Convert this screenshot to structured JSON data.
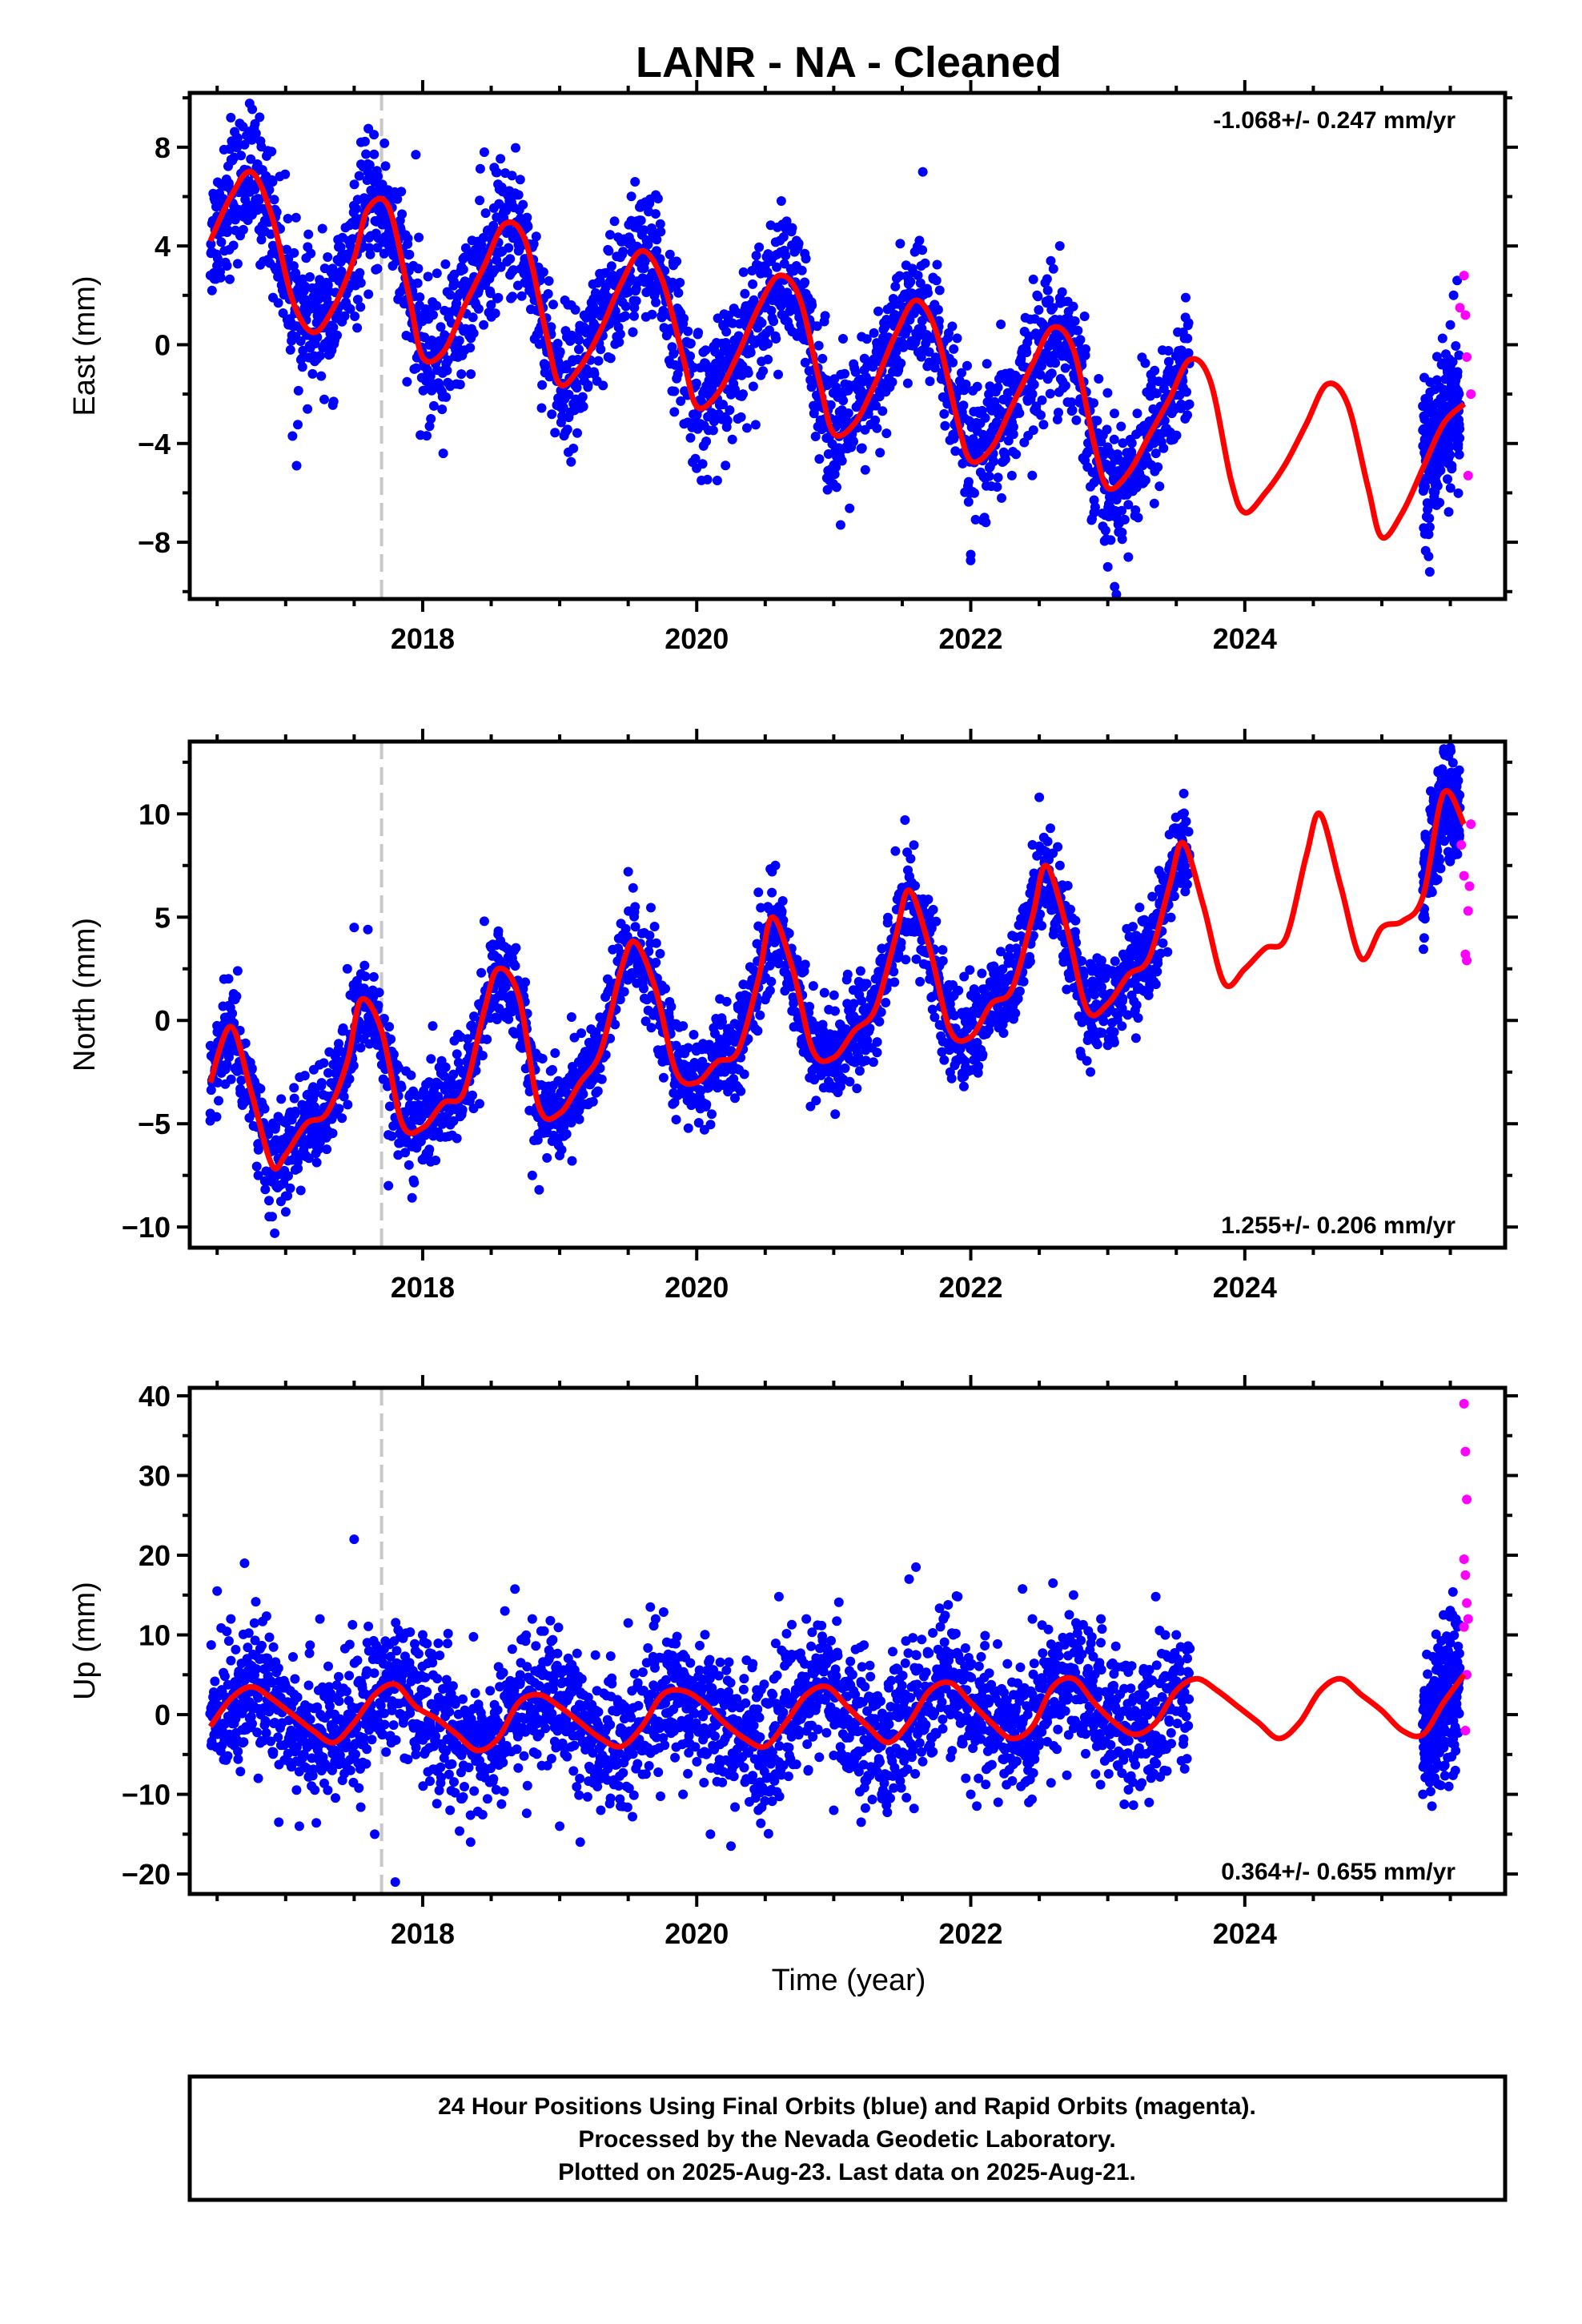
{
  "title": "LANR  - NA - Cleaned",
  "xlabel": "Time (year)",
  "footer": {
    "line1": "24 Hour Positions Using Final Orbits (blue) and Rapid Orbits (magenta).",
    "line2": "Processed by the Nevada Geodetic Laboratory.",
    "line3": "Plotted on 2025-Aug-23. Last data on 2025-Aug-21."
  },
  "colors": {
    "final": "#0000ff",
    "rapid": "#ff00ff",
    "model": "#ff0000",
    "event_line": "#c8c8c8"
  },
  "chart_data": [
    {
      "type": "scatter",
      "component": "east",
      "ylabel": "East (mm)",
      "rate": "-1.068+/- 0.247 mm/yr",
      "rate_position": "top-right",
      "xlim": [
        2016.3,
        2025.9
      ],
      "ylim": [
        -10.3,
        10.2
      ],
      "xticks": [
        2018,
        2020,
        2022,
        2024
      ],
      "xtick_labels": [
        "2018",
        "2020",
        "2022",
        "2024"
      ],
      "yticks": [
        8,
        4,
        0,
        -4,
        -8
      ],
      "ytick_labels": [
        "8",
        "4",
        "0",
        "−4",
        "−8"
      ],
      "event_line_x": 2017.7,
      "final_data_end": 2023.6,
      "rapid_data_start": 2025.3,
      "model": {
        "x": [
          2016.45,
          2016.6,
          2016.75,
          2016.9,
          2017.05,
          2017.2,
          2017.35,
          2017.5,
          2017.6,
          2017.75,
          2017.9,
          2018.0,
          2018.15,
          2018.3,
          2018.45,
          2018.6,
          2018.75,
          2018.9,
          2019.0,
          2019.15,
          2019.3,
          2019.45,
          2019.6,
          2019.75,
          2019.9,
          2020.0,
          2020.15,
          2020.3,
          2020.45,
          2020.6,
          2020.75,
          2020.9,
          2021.0,
          2021.15,
          2021.3,
          2021.45,
          2021.6,
          2021.75,
          2021.9,
          2022.0,
          2022.15,
          2022.3,
          2022.45,
          2022.6,
          2022.75,
          2022.9,
          2023.0,
          2023.15,
          2023.3,
          2023.45,
          2023.6,
          2023.75,
          2023.9,
          2024.0,
          2024.15,
          2024.3,
          2024.45,
          2024.6,
          2024.75,
          2024.9,
          2025.0,
          2025.15,
          2025.3,
          2025.45,
          2025.6
        ],
        "y": [
          4.2,
          6.0,
          7.0,
          5.2,
          1.8,
          0.5,
          1.5,
          3.5,
          5.5,
          5.6,
          2.0,
          -0.5,
          -0.3,
          1.5,
          3.2,
          4.9,
          4.2,
          0.5,
          -1.6,
          -0.9,
          0.6,
          2.5,
          3.8,
          2.6,
          -0.5,
          -2.5,
          -2.0,
          -0.4,
          1.5,
          2.8,
          1.9,
          -1.6,
          -3.6,
          -3.2,
          -1.6,
          0.4,
          1.8,
          0.5,
          -3.0,
          -4.7,
          -4.2,
          -2.5,
          -0.8,
          0.7,
          -0.2,
          -4.0,
          -5.8,
          -5.2,
          -3.7,
          -2.2,
          -0.6,
          -1.5,
          -5.5,
          -6.8,
          -6.0,
          -4.8,
          -3.2,
          -1.6,
          -2.4,
          -5.8,
          -7.8,
          -6.8,
          -5.0,
          -3.2,
          -2.4
        ]
      },
      "final_points": [
        [
          2016.5,
          5.2
        ],
        [
          2016.55,
          7.9
        ],
        [
          2016.6,
          9.2
        ],
        [
          2016.65,
          6.3
        ],
        [
          2016.7,
          8.1
        ],
        [
          2016.8,
          5.5
        ],
        [
          2016.95,
          3.1
        ],
        [
          2017.05,
          -3.7
        ],
        [
          2017.08,
          -4.9
        ],
        [
          2017.15,
          1.0
        ],
        [
          2017.35,
          -2.3
        ],
        [
          2017.5,
          5.6
        ],
        [
          2017.55,
          8.2
        ],
        [
          2017.6,
          7.0
        ],
        [
          2017.75,
          5.0
        ],
        [
          2017.95,
          7.7
        ],
        [
          2018.0,
          1.2
        ],
        [
          2018.05,
          -3.3
        ],
        [
          2018.15,
          -4.4
        ],
        [
          2018.3,
          2.2
        ],
        [
          2018.45,
          7.8
        ],
        [
          2018.55,
          6.5
        ],
        [
          2018.7,
          3.8
        ],
        [
          2018.85,
          0.6
        ],
        [
          2019.0,
          -2.5
        ],
        [
          2019.1,
          -4.2
        ],
        [
          2019.25,
          -1.1
        ],
        [
          2019.4,
          5.0
        ],
        [
          2019.55,
          6.6
        ],
        [
          2019.7,
          5.3
        ],
        [
          2019.85,
          1.3
        ],
        [
          2020.05,
          -4.1
        ],
        [
          2020.15,
          -5.5
        ],
        [
          2020.3,
          -3.0
        ],
        [
          2020.5,
          1.5
        ],
        [
          2020.65,
          4.7
        ],
        [
          2020.8,
          0.5
        ],
        [
          2020.95,
          -5.4
        ],
        [
          2021.05,
          -7.3
        ],
        [
          2021.2,
          -4.2
        ],
        [
          2021.4,
          0.3
        ],
        [
          2021.55,
          2.1
        ],
        [
          2021.65,
          7.0
        ],
        [
          2021.75,
          2.6
        ],
        [
          2021.9,
          -3.4
        ],
        [
          2022.0,
          -8.5
        ],
        [
          2022.1,
          -7.0
        ],
        [
          2022.3,
          -5.3
        ],
        [
          2022.45,
          -2.0
        ],
        [
          2022.6,
          1.5
        ],
        [
          2022.65,
          4.0
        ],
        [
          2022.8,
          0.2
        ],
        [
          2022.9,
          -6.8
        ],
        [
          2023.0,
          -9.0
        ],
        [
          2023.05,
          -9.8
        ],
        [
          2023.15,
          -8.6
        ],
        [
          2023.3,
          -3.5
        ],
        [
          2023.45,
          -1.0
        ],
        [
          2023.55,
          0.5
        ],
        [
          2025.3,
          -4.1
        ],
        [
          2025.35,
          -9.2
        ],
        [
          2025.4,
          -6.5
        ],
        [
          2025.45,
          -3.0
        ],
        [
          2025.5,
          0.8
        ],
        [
          2025.55,
          2.6
        ]
      ],
      "rapid_points": [
        [
          2025.57,
          1.5
        ],
        [
          2025.6,
          2.8
        ],
        [
          2025.61,
          1.2
        ],
        [
          2025.62,
          -0.5
        ],
        [
          2025.63,
          -5.3
        ],
        [
          2025.65,
          -2.0
        ]
      ]
    },
    {
      "type": "scatter",
      "component": "north",
      "ylabel": "North (mm)",
      "rate": "1.255+/- 0.206 mm/yr",
      "rate_position": "bottom-right",
      "xlim": [
        2016.3,
        2025.9
      ],
      "ylim": [
        -11.0,
        13.5
      ],
      "xticks": [
        2018,
        2020,
        2022,
        2024
      ],
      "xtick_labels": [
        "2018",
        "2020",
        "2022",
        "2024"
      ],
      "yticks": [
        10,
        5,
        0,
        -5,
        -10
      ],
      "ytick_labels": [
        "10",
        "5",
        "0",
        "−5",
        "−10"
      ],
      "event_line_x": 2017.7,
      "final_data_end": 2023.6,
      "rapid_data_start": 2025.3,
      "model": {
        "x": [
          2016.45,
          2016.6,
          2016.75,
          2016.9,
          2017.0,
          2017.15,
          2017.3,
          2017.45,
          2017.55,
          2017.7,
          2017.85,
          2018.0,
          2018.15,
          2018.3,
          2018.45,
          2018.55,
          2018.7,
          2018.85,
          2019.0,
          2019.15,
          2019.3,
          2019.45,
          2019.55,
          2019.7,
          2019.85,
          2020.0,
          2020.15,
          2020.3,
          2020.45,
          2020.55,
          2020.7,
          2020.85,
          2021.0,
          2021.15,
          2021.3,
          2021.45,
          2021.55,
          2021.7,
          2021.85,
          2022.0,
          2022.15,
          2022.3,
          2022.45,
          2022.55,
          2022.7,
          2022.85,
          2023.0,
          2023.15,
          2023.3,
          2023.45,
          2023.55,
          2023.7,
          2023.85,
          2024.0,
          2024.15,
          2024.3,
          2024.45,
          2024.55,
          2024.7,
          2024.85,
          2025.0,
          2025.15,
          2025.3,
          2025.45,
          2025.6
        ],
        "y": [
          -3.0,
          -0.3,
          -3.5,
          -7.0,
          -6.5,
          -5.0,
          -4.5,
          -2.0,
          1.0,
          -0.5,
          -5.0,
          -5.2,
          -4.0,
          -3.5,
          0.5,
          2.5,
          1.2,
          -4.2,
          -4.5,
          -3.0,
          -1.5,
          2.5,
          3.8,
          1.5,
          -2.5,
          -3.0,
          -2.0,
          -1.5,
          2.0,
          5.0,
          2.5,
          -1.5,
          -1.8,
          -0.5,
          0.5,
          4.0,
          6.3,
          3.5,
          -0.5,
          -0.8,
          0.8,
          1.5,
          5.0,
          7.5,
          4.5,
          0.5,
          0.8,
          2.2,
          3.0,
          6.5,
          8.6,
          5.5,
          1.8,
          2.5,
          3.5,
          4.0,
          8.0,
          10.0,
          6.5,
          3.0,
          4.5,
          4.8,
          6.0,
          11.0,
          9.5
        ]
      },
      "final_points": [
        [
          2016.45,
          -4.5
        ],
        [
          2016.55,
          2.0
        ],
        [
          2016.65,
          2.4
        ],
        [
          2016.8,
          -7.5
        ],
        [
          2016.88,
          -9.5
        ],
        [
          2016.92,
          -10.3
        ],
        [
          2017.0,
          -8.5
        ],
        [
          2017.2,
          -3.8
        ],
        [
          2017.45,
          2.5
        ],
        [
          2017.5,
          4.5
        ],
        [
          2017.6,
          4.4
        ],
        [
          2017.75,
          -8.0
        ],
        [
          2017.9,
          -7.0
        ],
        [
          2018.1,
          -3.0
        ],
        [
          2018.35,
          -1.5
        ],
        [
          2018.45,
          4.8
        ],
        [
          2018.6,
          2.0
        ],
        [
          2018.8,
          -7.5
        ],
        [
          2018.85,
          -8.2
        ],
        [
          2019.05,
          -5.5
        ],
        [
          2019.35,
          2.0
        ],
        [
          2019.5,
          7.2
        ],
        [
          2019.55,
          5.5
        ],
        [
          2019.75,
          -2.0
        ],
        [
          2019.85,
          -4.8
        ],
        [
          2020.05,
          -4.0
        ],
        [
          2020.35,
          0.5
        ],
        [
          2020.45,
          6.2
        ],
        [
          2020.55,
          7.2
        ],
        [
          2020.75,
          0.2
        ],
        [
          2020.85,
          -2.8
        ],
        [
          2021.05,
          -3.2
        ],
        [
          2021.3,
          1.5
        ],
        [
          2021.45,
          8.2
        ],
        [
          2021.52,
          9.7
        ],
        [
          2021.7,
          2.0
        ],
        [
          2021.85,
          -2.5
        ],
        [
          2021.95,
          -3.2
        ],
        [
          2022.2,
          2.0
        ],
        [
          2022.45,
          8.5
        ],
        [
          2022.5,
          10.8
        ],
        [
          2022.7,
          1.5
        ],
        [
          2022.8,
          -1.5
        ],
        [
          2023.0,
          -1.2
        ],
        [
          2023.2,
          3.5
        ],
        [
          2023.3,
          1.5
        ],
        [
          2023.45,
          9.0
        ],
        [
          2023.55,
          9.4
        ],
        [
          2025.3,
          5.0
        ],
        [
          2025.4,
          9.0
        ],
        [
          2025.5,
          13.2
        ],
        [
          2025.55,
          10.5
        ]
      ],
      "rapid_points": [
        [
          2025.58,
          8.5
        ],
        [
          2025.6,
          7.0
        ],
        [
          2025.61,
          3.2
        ],
        [
          2025.62,
          2.9
        ],
        [
          2025.63,
          5.3
        ],
        [
          2025.64,
          6.5
        ],
        [
          2025.65,
          9.5
        ]
      ]
    },
    {
      "type": "scatter",
      "component": "up",
      "ylabel": "Up (mm)",
      "rate": "0.364+/- 0.655 mm/yr",
      "rate_position": "bottom-right",
      "xlim": [
        2016.3,
        2025.9
      ],
      "ylim": [
        -22.5,
        41.0
      ],
      "xticks": [
        2018,
        2020,
        2022,
        2024
      ],
      "xtick_labels": [
        "2018",
        "2020",
        "2022",
        "2024"
      ],
      "yticks": [
        40,
        30,
        20,
        10,
        0,
        -10,
        -20
      ],
      "ytick_labels": [
        "40",
        "30",
        "20",
        "10",
        "0",
        "−10",
        "−20"
      ],
      "event_line_x": 2017.7,
      "final_data_end": 2023.6,
      "rapid_data_start": 2025.3,
      "model": {
        "x": [
          2016.45,
          2016.6,
          2016.75,
          2016.9,
          2017.05,
          2017.2,
          2017.35,
          2017.5,
          2017.65,
          2017.8,
          2017.95,
          2018.1,
          2018.25,
          2018.4,
          2018.55,
          2018.7,
          2018.85,
          2019.0,
          2019.15,
          2019.3,
          2019.45,
          2019.6,
          2019.75,
          2019.9,
          2020.05,
          2020.2,
          2020.35,
          2020.5,
          2020.65,
          2020.8,
          2020.95,
          2021.1,
          2021.25,
          2021.4,
          2021.55,
          2021.7,
          2021.85,
          2022.0,
          2022.15,
          2022.3,
          2022.45,
          2022.6,
          2022.75,
          2022.9,
          2023.05,
          2023.2,
          2023.35,
          2023.5,
          2023.65,
          2023.8,
          2023.95,
          2024.1,
          2024.25,
          2024.4,
          2024.55,
          2024.7,
          2024.85,
          2025.0,
          2025.15,
          2025.3,
          2025.45,
          2025.6
        ],
        "y": [
          -1.5,
          2.0,
          3.5,
          2.0,
          0.0,
          -2.0,
          -3.5,
          -1.0,
          2.5,
          3.8,
          1.0,
          -0.5,
          -2.5,
          -4.5,
          -3.0,
          1.5,
          2.5,
          1.0,
          -1.0,
          -3.0,
          -4.0,
          -1.5,
          2.5,
          3.0,
          1.5,
          -1.0,
          -3.0,
          -4.0,
          -1.0,
          2.5,
          3.5,
          1.0,
          -1.5,
          -3.5,
          -1.0,
          3.0,
          4.0,
          1.5,
          -1.0,
          -3.0,
          -1.5,
          3.5,
          4.5,
          1.5,
          -1.0,
          -2.5,
          -1.0,
          3.0,
          4.5,
          3.0,
          1.0,
          -1.0,
          -3.0,
          -1.0,
          3.0,
          4.5,
          2.5,
          0.5,
          -2.0,
          -2.5,
          1.5,
          5.0
        ]
      },
      "final_points": [
        [
          2016.5,
          15.5
        ],
        [
          2016.6,
          12.0
        ],
        [
          2016.7,
          19.0
        ],
        [
          2016.8,
          -8.0
        ],
        [
          2016.95,
          -13.5
        ],
        [
          2017.1,
          -14.0
        ],
        [
          2017.25,
          12.0
        ],
        [
          2017.5,
          22.0
        ],
        [
          2017.65,
          -15.0
        ],
        [
          2017.8,
          -21.0
        ],
        [
          2018.0,
          10.0
        ],
        [
          2018.2,
          -12.0
        ],
        [
          2018.35,
          -16.0
        ],
        [
          2018.6,
          13.0
        ],
        [
          2018.8,
          12.0
        ],
        [
          2019.0,
          -14.0
        ],
        [
          2019.15,
          -16.0
        ],
        [
          2019.3,
          -12.0
        ],
        [
          2019.5,
          11.5
        ],
        [
          2019.7,
          12.0
        ],
        [
          2019.9,
          -10.0
        ],
        [
          2020.1,
          -15.0
        ],
        [
          2020.25,
          -16.5
        ],
        [
          2020.45,
          -12.0
        ],
        [
          2020.6,
          14.8
        ],
        [
          2020.8,
          12.0
        ],
        [
          2021.0,
          -12.0
        ],
        [
          2021.2,
          -13.5
        ],
        [
          2021.35,
          -10.0
        ],
        [
          2021.55,
          17.0
        ],
        [
          2021.6,
          18.5
        ],
        [
          2021.8,
          12.0
        ],
        [
          2022.0,
          -10.0
        ],
        [
          2022.2,
          -11.0
        ],
        [
          2022.45,
          12.0
        ],
        [
          2022.6,
          16.5
        ],
        [
          2022.75,
          15.0
        ],
        [
          2022.95,
          12.0
        ],
        [
          2023.15,
          -8.0
        ],
        [
          2023.35,
          14.8
        ],
        [
          2023.5,
          10.0
        ],
        [
          2025.3,
          -10.0
        ],
        [
          2025.35,
          -8.5
        ],
        [
          2025.45,
          12.5
        ],
        [
          2025.5,
          9.0
        ],
        [
          2025.55,
          3.0
        ]
      ],
      "rapid_points": [
        [
          2025.6,
          39.0
        ],
        [
          2025.61,
          33.0
        ],
        [
          2025.62,
          27.0
        ],
        [
          2025.6,
          19.5
        ],
        [
          2025.61,
          17.5
        ],
        [
          2025.62,
          14.0
        ],
        [
          2025.63,
          12.0
        ],
        [
          2025.6,
          11.0
        ],
        [
          2025.62,
          5.0
        ],
        [
          2025.61,
          -2.0
        ]
      ]
    }
  ]
}
